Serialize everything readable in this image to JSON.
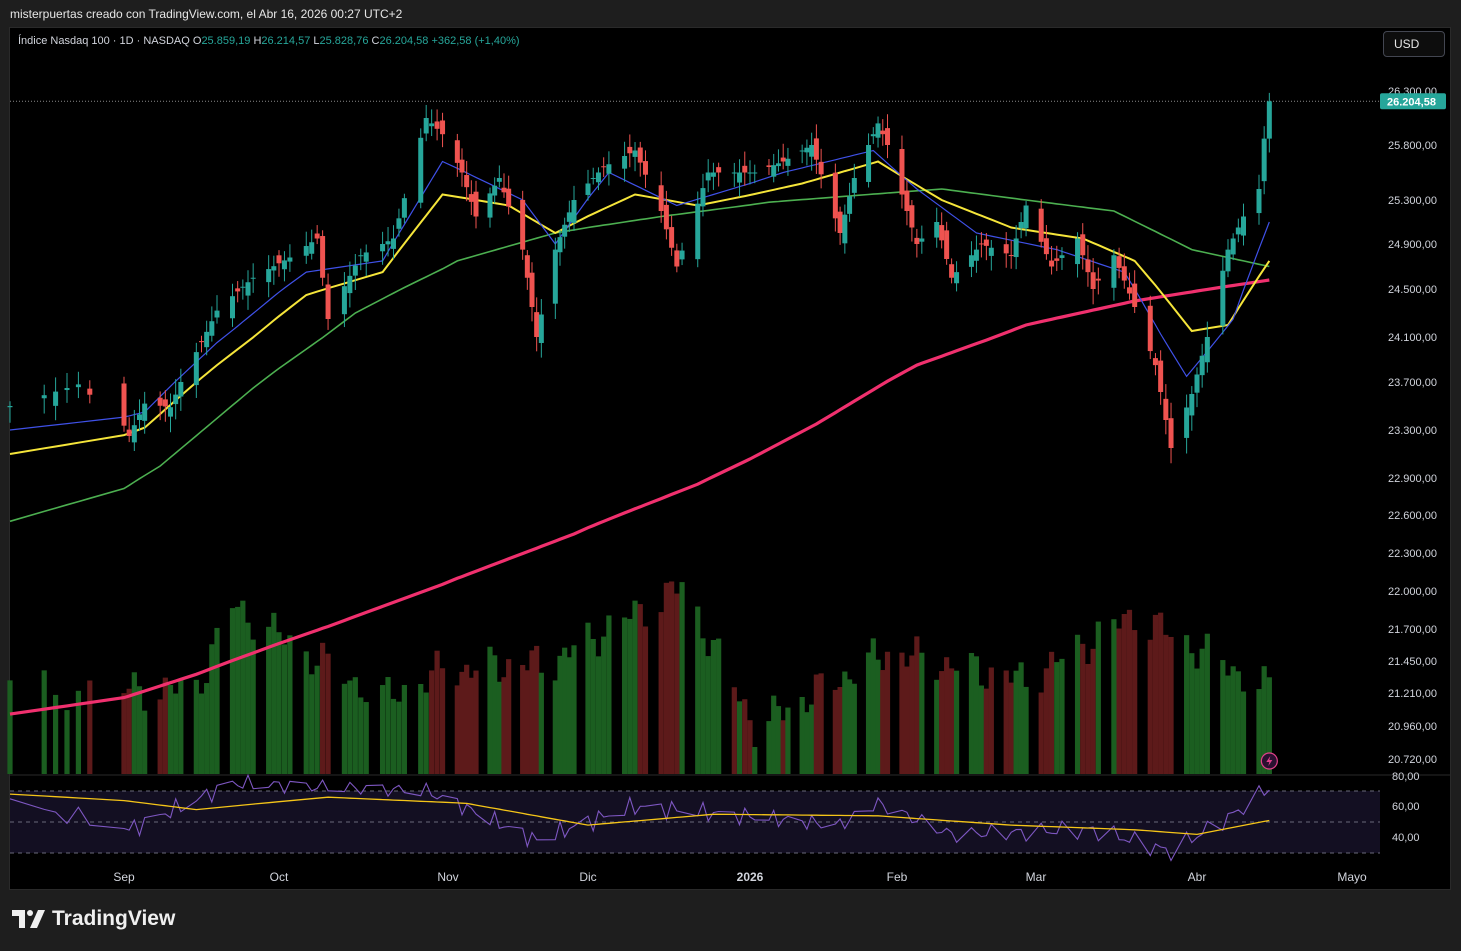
{
  "header": {
    "caption": "misterpuertas creado con TradingView.com, el Abr 16, 2026 00:27 UTC+2"
  },
  "legend": {
    "symbol": "Índice Nasdaq 100 · 1D · NASDAQ",
    "o_label": "O",
    "o_value": "25.859,19",
    "h_label": "H",
    "h_value": "26.214,57",
    "l_label": "L",
    "l_value": "25.828,76",
    "c_label": "C",
    "c_value": "26.204,58",
    "change": "+362,58 (+1,40%)"
  },
  "currency_button": {
    "label": "USD"
  },
  "brand": {
    "name": "TradingView"
  },
  "colors": {
    "up": "#26a69a",
    "down": "#ef5350",
    "vol_up": "#1b5e20",
    "vol_down": "#5d1a1a",
    "ma_fast": "#3f51e8",
    "ma_mid": "#f5e53a",
    "ma_slow": "#4caf50",
    "ma_long": "#f0306e",
    "rsi": "#7e57c2",
    "rsi_ma": "#f5c518",
    "last_price_bg": "#26a69a"
  },
  "chart_data": [
    {
      "type": "candlestick",
      "title": "Índice Nasdaq 100 · 1D · NASDAQ",
      "x_labels": [
        "Sep",
        "Oct",
        "Nov",
        "Dic",
        "2026",
        "Feb",
        "Mar",
        "Abr",
        "Mayo"
      ],
      "y_ticks": [
        "26.300,00",
        "25.800,00",
        "25.300,00",
        "24.900,00",
        "24.500,00",
        "24.100,00",
        "23.700,00",
        "23.300,00",
        "22.900,00",
        "22.600,00",
        "22.300,00",
        "22.000,00",
        "21.700,00",
        "21.450,00",
        "21.210,00",
        "20.960,00",
        "20.720,00"
      ],
      "last_price": "26.204,58",
      "price_path": [
        {
          "date": "2025-08-22",
          "close": 23500
        },
        {
          "date": "2025-08-28",
          "close": 23680
        },
        {
          "date": "2025-09-02",
          "close": 23250
        },
        {
          "date": "2025-09-05",
          "close": 23520
        },
        {
          "date": "2025-09-10",
          "close": 23490
        },
        {
          "date": "2025-09-12",
          "close": 23700
        },
        {
          "date": "2025-09-19",
          "close": 24320
        },
        {
          "date": "2025-09-26",
          "close": 24600
        },
        {
          "date": "2025-10-03",
          "close": 24780
        },
        {
          "date": "2025-10-08",
          "close": 24950
        },
        {
          "date": "2025-10-10",
          "close": 24250
        },
        {
          "date": "2025-10-16",
          "close": 24800
        },
        {
          "date": "2025-10-22",
          "close": 24950
        },
        {
          "date": "2025-10-28",
          "close": 26050
        },
        {
          "date": "2025-10-31",
          "close": 25900
        },
        {
          "date": "2025-11-04",
          "close": 25550
        },
        {
          "date": "2025-11-07",
          "close": 25150
        },
        {
          "date": "2025-11-12",
          "close": 25500
        },
        {
          "date": "2025-11-17",
          "close": 24850
        },
        {
          "date": "2025-11-20",
          "close": 24100
        },
        {
          "date": "2025-11-24",
          "close": 24850
        },
        {
          "date": "2025-11-28",
          "close": 25300
        },
        {
          "date": "2025-12-04",
          "close": 25600
        },
        {
          "date": "2025-12-10",
          "close": 25750
        },
        {
          "date": "2025-12-15",
          "close": 25200
        },
        {
          "date": "2025-12-18",
          "close": 24700
        },
        {
          "date": "2025-12-24",
          "close": 25550
        },
        {
          "date": "2026-01-02",
          "close": 25550
        },
        {
          "date": "2026-01-08",
          "close": 25650
        },
        {
          "date": "2026-01-14",
          "close": 25800
        },
        {
          "date": "2026-01-20",
          "close": 25000
        },
        {
          "date": "2026-01-23",
          "close": 25500
        },
        {
          "date": "2026-01-28",
          "close": 26000
        },
        {
          "date": "2026-01-30",
          "close": 25800
        },
        {
          "date": "2026-02-05",
          "close": 24900
        },
        {
          "date": "2026-02-09",
          "close": 25100
        },
        {
          "date": "2026-02-12",
          "close": 24600
        },
        {
          "date": "2026-02-18",
          "close": 24900
        },
        {
          "date": "2026-02-24",
          "close": 24800
        },
        {
          "date": "2026-02-27",
          "close": 25250
        },
        {
          "date": "2026-03-04",
          "close": 24700
        },
        {
          "date": "2026-03-09",
          "close": 24950
        },
        {
          "date": "2026-03-12",
          "close": 24500
        },
        {
          "date": "2026-03-16",
          "close": 24800
        },
        {
          "date": "2026-03-20",
          "close": 24350
        },
        {
          "date": "2026-03-24",
          "close": 23850
        },
        {
          "date": "2026-03-27",
          "close": 23150
        },
        {
          "date": "2026-03-31",
          "close": 23600
        },
        {
          "date": "2026-04-03",
          "close": 24100
        },
        {
          "date": "2026-04-07",
          "close": 24850
        },
        {
          "date": "2026-04-10",
          "close": 25150
        },
        {
          "date": "2026-04-13",
          "close": 25400
        },
        {
          "date": "2026-04-14",
          "close": 25859
        },
        {
          "date": "2026-04-15",
          "close": 26204.58
        }
      ],
      "moving_averages": [
        {
          "role": "fast",
          "path": [
            {
              "date": "2025-08-22",
              "value": 23300
            },
            {
              "date": "2025-09-05",
              "value": 23450
            },
            {
              "date": "2025-09-19",
              "value": 24050
            },
            {
              "date": "2025-10-06",
              "value": 24650
            },
            {
              "date": "2025-10-20",
              "value": 24750
            },
            {
              "date": "2025-10-31",
              "value": 25650
            },
            {
              "date": "2025-11-17",
              "value": 25300
            },
            {
              "date": "2025-11-24",
              "value": 24900
            },
            {
              "date": "2025-12-05",
              "value": 25550
            },
            {
              "date": "2025-12-18",
              "value": 25250
            },
            {
              "date": "2026-01-08",
              "value": 25550
            },
            {
              "date": "2026-01-27",
              "value": 25750
            },
            {
              "date": "2026-02-05",
              "value": 25400
            },
            {
              "date": "2026-02-17",
              "value": 25000
            },
            {
              "date": "2026-03-05",
              "value": 24850
            },
            {
              "date": "2026-03-18",
              "value": 24650
            },
            {
              "date": "2026-03-30",
              "value": 23750
            },
            {
              "date": "2026-04-08",
              "value": 24250
            },
            {
              "date": "2026-04-15",
              "value": 25100
            }
          ]
        },
        {
          "role": "mid",
          "path": [
            {
              "date": "2025-08-22",
              "value": 23100
            },
            {
              "date": "2025-09-05",
              "value": 23320
            },
            {
              "date": "2025-09-19",
              "value": 23850
            },
            {
              "date": "2025-10-06",
              "value": 24450
            },
            {
              "date": "2025-10-20",
              "value": 24650
            },
            {
              "date": "2025-10-31",
              "value": 25350
            },
            {
              "date": "2025-11-14",
              "value": 25250
            },
            {
              "date": "2025-11-24",
              "value": 25000
            },
            {
              "date": "2025-12-10",
              "value": 25350
            },
            {
              "date": "2025-12-22",
              "value": 25250
            },
            {
              "date": "2026-01-12",
              "value": 25450
            },
            {
              "date": "2026-01-28",
              "value": 25650
            },
            {
              "date": "2026-02-10",
              "value": 25300
            },
            {
              "date": "2026-02-24",
              "value": 25050
            },
            {
              "date": "2026-03-10",
              "value": 24950
            },
            {
              "date": "2026-03-20",
              "value": 24750
            },
            {
              "date": "2026-03-31",
              "value": 24150
            },
            {
              "date": "2026-04-07",
              "value": 24200
            },
            {
              "date": "2026-04-15",
              "value": 24750
            }
          ]
        },
        {
          "role": "slow",
          "path": [
            {
              "date": "2025-08-22",
              "value": 22550
            },
            {
              "date": "2025-09-08",
              "value": 23000
            },
            {
              "date": "2025-09-26",
              "value": 23650
            },
            {
              "date": "2025-10-15",
              "value": 24300
            },
            {
              "date": "2025-11-03",
              "value": 24750
            },
            {
              "date": "2025-11-24",
              "value": 25000
            },
            {
              "date": "2025-12-15",
              "value": 25150
            },
            {
              "date": "2026-01-05",
              "value": 25280
            },
            {
              "date": "2026-01-26",
              "value": 25350
            },
            {
              "date": "2026-02-10",
              "value": 25400
            },
            {
              "date": "2026-02-27",
              "value": 25300
            },
            {
              "date": "2026-03-16",
              "value": 25200
            },
            {
              "date": "2026-03-31",
              "value": 24850
            },
            {
              "date": "2026-04-15",
              "value": 24700
            }
          ]
        },
        {
          "role": "long",
          "path": [
            {
              "date": "2025-08-22",
              "value": 21050
            },
            {
              "date": "2025-09-15",
              "value": 21350
            },
            {
              "date": "2025-10-10",
              "value": 21720
            },
            {
              "date": "2025-11-03",
              "value": 22100
            },
            {
              "date": "2025-11-28",
              "value": 22450
            },
            {
              "date": "2025-12-22",
              "value": 22850
            },
            {
              "date": "2026-01-15",
              "value": 23350
            },
            {
              "date": "2026-02-05",
              "value": 23850
            },
            {
              "date": "2026-02-27",
              "value": 24200
            },
            {
              "date": "2026-03-20",
              "value": 24400
            },
            {
              "date": "2026-04-15",
              "value": 24580
            }
          ]
        }
      ],
      "volume_path": [
        {
          "date": "2025-08-22",
          "value": 0.45
        },
        {
          "date": "2025-09-15",
          "value": 0.45
        },
        {
          "date": "2025-09-22",
          "value": 0.9
        },
        {
          "date": "2025-10-20",
          "value": 0.4
        },
        {
          "date": "2025-10-31",
          "value": 0.55
        },
        {
          "date": "2025-11-24",
          "value": 0.6
        },
        {
          "date": "2025-12-19",
          "value": 1.0
        },
        {
          "date": "2026-01-02",
          "value": 0.25
        },
        {
          "date": "2026-01-30",
          "value": 0.65
        },
        {
          "date": "2026-02-27",
          "value": 0.5
        },
        {
          "date": "2026-03-20",
          "value": 0.85
        },
        {
          "date": "2026-04-15",
          "value": 0.45
        }
      ]
    },
    {
      "type": "line",
      "title": "",
      "y_ticks": [
        "80,00",
        "60,00",
        "40,00"
      ],
      "ylim": [
        30,
        80
      ],
      "reference_lines": [
        70,
        50,
        30
      ],
      "series": [
        {
          "role": "rsi",
          "path": [
            {
              "date": "2025-08-22",
              "value": 62
            },
            {
              "date": "2025-09-02",
              "value": 45
            },
            {
              "date": "2025-09-22",
              "value": 75
            },
            {
              "date": "2025-10-28",
              "value": 70
            },
            {
              "date": "2025-11-20",
              "value": 38
            },
            {
              "date": "2025-12-10",
              "value": 60
            },
            {
              "date": "2026-01-20",
              "value": 48
            },
            {
              "date": "2026-01-28",
              "value": 62
            },
            {
              "date": "2026-02-12",
              "value": 42
            },
            {
              "date": "2026-03-12",
              "value": 45
            },
            {
              "date": "2026-03-27",
              "value": 31
            },
            {
              "date": "2026-04-08",
              "value": 55
            },
            {
              "date": "2026-04-15",
              "value": 72
            }
          ]
        },
        {
          "role": "rsi_ma",
          "path": [
            {
              "date": "2025-08-22",
              "value": 68
            },
            {
              "date": "2025-09-15",
              "value": 58
            },
            {
              "date": "2025-10-10",
              "value": 66
            },
            {
              "date": "2025-11-05",
              "value": 62
            },
            {
              "date": "2025-12-01",
              "value": 48
            },
            {
              "date": "2025-12-25",
              "value": 55
            },
            {
              "date": "2026-01-28",
              "value": 54
            },
            {
              "date": "2026-02-24",
              "value": 48
            },
            {
              "date": "2026-03-20",
              "value": 45
            },
            {
              "date": "2026-04-01",
              "value": 42
            },
            {
              "date": "2026-04-15",
              "value": 51
            }
          ]
        }
      ]
    }
  ]
}
